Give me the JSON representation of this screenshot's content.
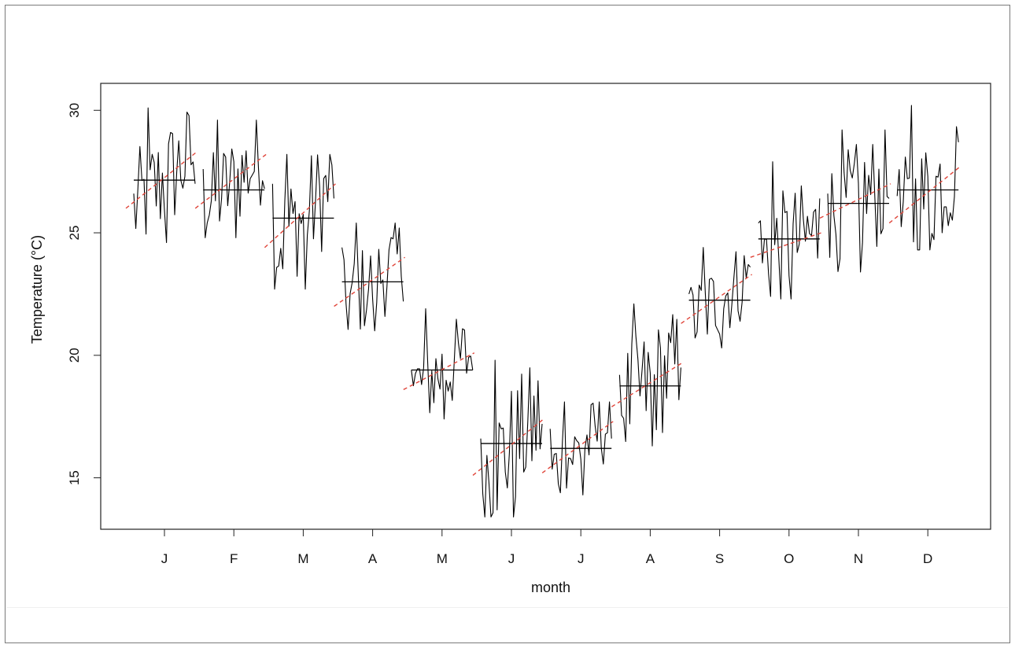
{
  "chart_data": {
    "type": "line",
    "title": "",
    "xlabel": "month",
    "ylabel": "Temperature  (°C)",
    "categories": [
      "J",
      "F",
      "M",
      "A",
      "M",
      "J",
      "J",
      "A",
      "S",
      "O",
      "N",
      "D"
    ],
    "ylim": [
      12.9,
      31.1
    ],
    "yticks": [
      15,
      20,
      25,
      30
    ],
    "grid": false,
    "legend": "none",
    "colors": {
      "series": "#000000",
      "mean": "#000000",
      "trend": "#e0453a"
    },
    "series": [
      {
        "month": "J",
        "mean": 27.15,
        "trend": [
          26.0,
          28.3
        ],
        "min": 24.6,
        "max": 30.1,
        "start": 26.6,
        "end": 27.0
      },
      {
        "month": "F",
        "mean": 26.75,
        "trend": [
          26.0,
          28.2
        ],
        "min": 24.8,
        "max": 29.6,
        "start": 27.6,
        "end": 26.8
      },
      {
        "month": "M",
        "mean": 25.6,
        "trend": [
          24.4,
          27.0
        ],
        "min": 22.7,
        "max": 28.2,
        "start": 27.0,
        "end": 26.4
      },
      {
        "month": "A",
        "mean": 23.0,
        "trend": [
          22.0,
          24.0
        ],
        "min": 21.0,
        "max": 25.4,
        "start": 24.4,
        "end": 22.2
      },
      {
        "month": "M",
        "mean": 19.4,
        "trend": [
          18.6,
          20.1
        ],
        "min": 17.4,
        "max": 21.9,
        "start": 19.4,
        "end": 19.4
      },
      {
        "month": "J",
        "mean": 16.4,
        "trend": [
          15.1,
          17.4
        ],
        "min": 13.4,
        "max": 19.8,
        "start": 16.6,
        "end": 17.2
      },
      {
        "month": "J",
        "mean": 16.2,
        "trend": [
          15.2,
          17.3
        ],
        "min": 14.3,
        "max": 18.1,
        "start": 17.0,
        "end": 16.6
      },
      {
        "month": "A",
        "mean": 18.75,
        "trend": [
          17.9,
          19.7
        ],
        "min": 16.3,
        "max": 22.1,
        "start": 19.2,
        "end": 19.5
      },
      {
        "month": "S",
        "mean": 22.25,
        "trend": [
          21.3,
          23.3
        ],
        "min": 20.3,
        "max": 24.4,
        "start": 22.5,
        "end": 23.6
      },
      {
        "month": "O",
        "mean": 24.75,
        "trend": [
          24.0,
          25.0
        ],
        "min": 22.3,
        "max": 27.9,
        "start": 25.4,
        "end": 26.4
      },
      {
        "month": "N",
        "mean": 26.2,
        "trend": [
          25.6,
          27.0
        ],
        "min": 23.4,
        "max": 29.2,
        "start": 26.6,
        "end": 26.4
      },
      {
        "month": "D",
        "mean": 26.75,
        "trend": [
          25.4,
          27.7
        ],
        "min": 24.3,
        "max": 30.2,
        "start": 26.5,
        "end": 28.7
      }
    ]
  }
}
